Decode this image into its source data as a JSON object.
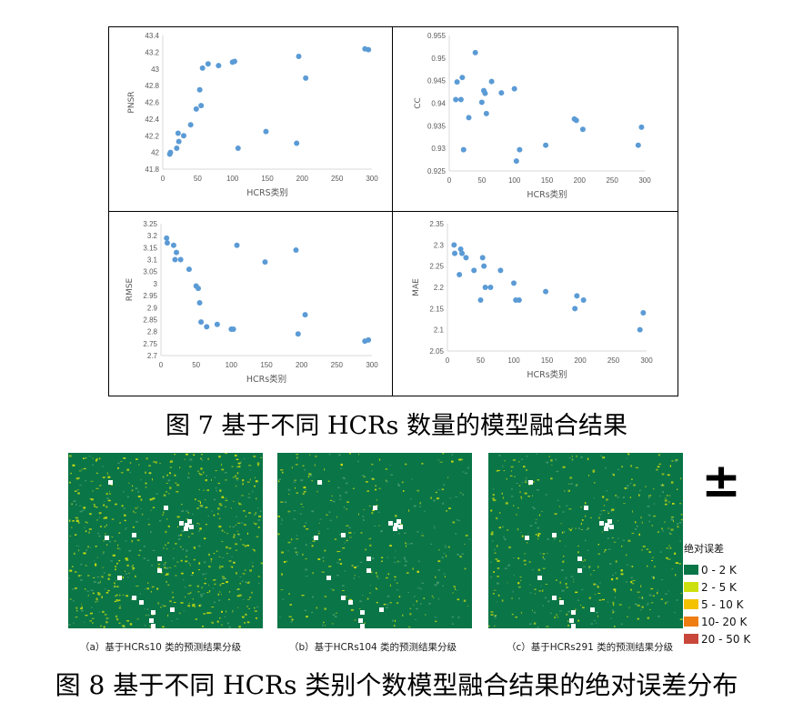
{
  "figure7": {
    "caption": "图 7  基于不同 HCRs 数量的模型融合结果",
    "charts": [
      {
        "id": "pnsr",
        "ylabel": "PNSR",
        "xlabel": "HCRS类别"
      },
      {
        "id": "cc",
        "ylabel": "CC",
        "xlabel": "HCRs类别"
      },
      {
        "id": "rmse",
        "ylabel": "RMSE",
        "xlabel": "HCRs类别"
      },
      {
        "id": "mae",
        "ylabel": "MAE",
        "xlabel": "HCRs类别"
      }
    ]
  },
  "chart_data": [
    {
      "type": "scatter",
      "ylabel": "PNSR",
      "xlabel": "HCRS类别",
      "xlim": [
        0,
        300
      ],
      "ylim": [
        41.8,
        43.4
      ],
      "x_ticks": [
        0,
        50,
        100,
        150,
        200,
        250,
        300
      ],
      "y_ticks": [
        "41.8",
        "42",
        "42.2",
        "42.4",
        "42.6",
        "42.8",
        "43",
        "43.2",
        "43.4"
      ],
      "grid": false,
      "x": [
        10,
        11,
        20,
        23,
        22,
        30,
        40,
        48,
        53,
        55,
        57,
        65,
        80,
        100,
        103,
        108,
        148,
        192,
        195,
        205,
        290,
        295
      ],
      "y": [
        41.98,
        42.0,
        42.05,
        42.13,
        42.23,
        42.2,
        42.33,
        42.52,
        42.75,
        42.56,
        43.01,
        43.06,
        43.04,
        43.08,
        43.09,
        42.05,
        42.25,
        42.11,
        43.15,
        42.89,
        43.24,
        43.23
      ]
    },
    {
      "type": "scatter",
      "ylabel": "CC",
      "xlabel": "HCRs类别",
      "xlim": [
        0,
        300
      ],
      "ylim": [
        0.925,
        0.955
      ],
      "x_ticks": [
        0,
        50,
        100,
        150,
        200,
        250,
        300
      ],
      "y_ticks": [
        "0.925",
        "0.93",
        "0.935",
        "0.94",
        "0.945",
        "0.95",
        "0.955"
      ],
      "grid": false,
      "x": [
        10,
        12,
        18,
        20,
        22,
        30,
        40,
        50,
        53,
        55,
        57,
        65,
        80,
        100,
        103,
        108,
        148,
        192,
        195,
        205,
        290,
        295
      ],
      "y": [
        0.9408,
        0.9447,
        0.9408,
        0.9457,
        0.9297,
        0.9368,
        0.9512,
        0.9402,
        0.9428,
        0.9422,
        0.9377,
        0.9448,
        0.9423,
        0.9432,
        0.9272,
        0.9297,
        0.9307,
        0.9365,
        0.9362,
        0.9342,
        0.9307,
        0.9347
      ]
    },
    {
      "type": "scatter",
      "ylabel": "RMSE",
      "xlabel": "HCRs类别",
      "xlim": [
        0,
        300
      ],
      "ylim": [
        2.7,
        3.25
      ],
      "x_ticks": [
        0,
        50,
        100,
        150,
        200,
        250,
        300
      ],
      "y_ticks": [
        "2.7",
        "2.75",
        "2.8",
        "2.85",
        "2.9",
        "2.95",
        "3",
        "3.05",
        "3.1",
        "3.15",
        "3.2",
        "3.25"
      ],
      "grid": false,
      "x": [
        8,
        9,
        18,
        20,
        22,
        28,
        40,
        50,
        53,
        55,
        57,
        65,
        80,
        100,
        103,
        108,
        148,
        192,
        195,
        205,
        290,
        295
      ],
      "y": [
        3.19,
        3.17,
        3.16,
        3.1,
        3.13,
        3.1,
        3.06,
        2.99,
        2.98,
        2.92,
        2.84,
        2.82,
        2.83,
        2.81,
        2.81,
        3.16,
        3.09,
        3.14,
        2.79,
        2.87,
        2.76,
        2.765
      ]
    },
    {
      "type": "scatter",
      "ylabel": "MAE",
      "xlabel": "HCRs类别",
      "xlim": [
        0,
        300
      ],
      "ylim": [
        2.05,
        2.35
      ],
      "x_ticks": [
        0,
        50,
        100,
        150,
        200,
        250,
        300
      ],
      "y_ticks": [
        "2.05",
        "2.1",
        "2.15",
        "2.2",
        "2.25",
        "2.3",
        "2.35"
      ],
      "grid": false,
      "x": [
        10,
        11,
        18,
        20,
        22,
        28,
        40,
        50,
        53,
        55,
        57,
        65,
        80,
        100,
        103,
        108,
        148,
        192,
        195,
        205,
        290,
        295
      ],
      "y": [
        2.3,
        2.28,
        2.23,
        2.29,
        2.28,
        2.27,
        2.24,
        2.17,
        2.27,
        2.25,
        2.2,
        2.2,
        2.24,
        2.21,
        2.17,
        2.17,
        2.19,
        2.15,
        2.18,
        2.17,
        2.1,
        2.14
      ]
    }
  ],
  "figure8": {
    "caption": "图 8  基于不同 HCRs 类别个数模型融合结果的绝对误差分布",
    "panels": [
      {
        "caption": "（a）基于HCRs10 类的预测结果分级",
        "yellow_fraction": 0.3
      },
      {
        "caption": "（b）基于HCRs104 类的预测结果分级",
        "yellow_fraction": 0.12
      },
      {
        "caption": "（c）基于HCRs291 类的预测结果分级",
        "yellow_fraction": 0.18
      }
    ],
    "north_symbol": "±",
    "legend": {
      "title": "绝对误差",
      "items": [
        {
          "label": "0 - 2 K",
          "color": "#0a7547"
        },
        {
          "label": "2 - 5 K",
          "color": "#cde00f"
        },
        {
          "label": "5 - 10 K",
          "color": "#f5c200"
        },
        {
          "label": "10- 20 K",
          "color": "#f07d12"
        },
        {
          "label": "20 - 50 K",
          "color": "#c8473a"
        }
      ]
    }
  },
  "colors": {
    "point": "#5b9bd5",
    "axis": "#d9d9d9",
    "map_green": "#0a7547",
    "map_yellow": "#cde00f"
  }
}
